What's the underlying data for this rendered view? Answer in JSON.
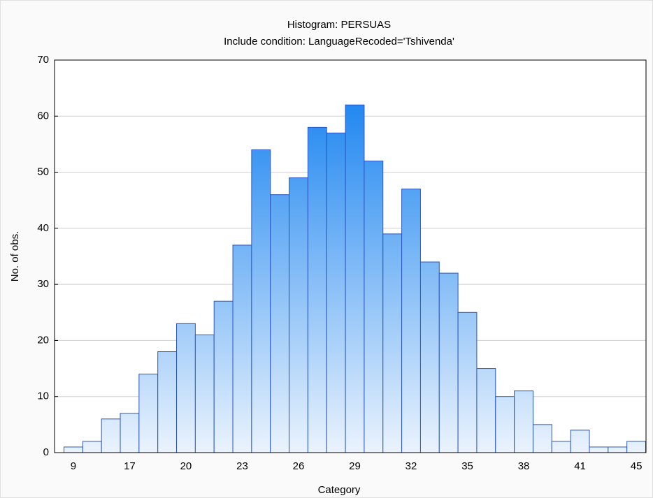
{
  "chart_data": {
    "type": "bar",
    "title": "Histogram: PERSUAS",
    "subtitle": "Include condition: LanguageRecoded='Tshivenda'",
    "x_label": "Category",
    "y_label": "No. of obs.",
    "categories": [
      "9",
      null,
      null,
      "17",
      null,
      null,
      "20",
      null,
      null,
      "23",
      null,
      null,
      "26",
      null,
      null,
      "29",
      null,
      null,
      "32",
      null,
      null,
      "35",
      null,
      null,
      "38",
      null,
      null,
      "41",
      null,
      null,
      "45"
    ],
    "values": [
      1,
      2,
      6,
      7,
      14,
      18,
      23,
      21,
      27,
      37,
      54,
      46,
      49,
      58,
      57,
      62,
      52,
      39,
      47,
      34,
      32,
      25,
      15,
      10,
      11,
      5,
      2,
      4,
      1,
      1,
      2
    ],
    "color": "#1e86f0",
    "ylim": [
      0,
      70
    ],
    "yticks": [
      0,
      10,
      20,
      30,
      40,
      50,
      60,
      70
    ],
    "grid": true
  }
}
